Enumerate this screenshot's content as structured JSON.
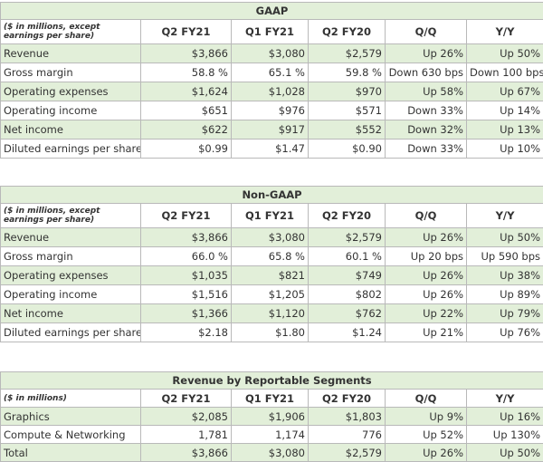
{
  "tables": [
    {
      "title": "GAAP",
      "header": [
        "($ in millions, except earnings per share)",
        "Q2 FY21",
        "Q1 FY21",
        "Q2 FY20",
        "Q/Q",
        "Y/Y"
      ],
      "rows": [
        [
          "Revenue",
          "$3,866",
          "$3,080",
          "$2,579",
          "Up 26%",
          "Up 50%"
        ],
        [
          "Gross margin",
          "58.8 %",
          "65.1 %",
          "59.8 %",
          "Down 630 bps",
          "Down 100 bps"
        ],
        [
          "Operating expenses",
          "$1,624",
          "$1,028",
          "$970",
          "Up 58%",
          "Up 67%"
        ],
        [
          "Operating income",
          "$651",
          "$976",
          "$571",
          "Down 33%",
          "Up 14%"
        ],
        [
          "Net income",
          "$622",
          "$917",
          "$552",
          "Down 32%",
          "Up 13%"
        ],
        [
          "Diluted earnings per share",
          "$0.99",
          "$1.47",
          "$0.90",
          "Down 33%",
          "Up 10%"
        ]
      ]
    },
    {
      "title": "Non-GAAP",
      "header": [
        "($ in millions, except earnings per share)",
        "Q2 FY21",
        "Q1 FY21",
        "Q2 FY20",
        "Q/Q",
        "Y/Y"
      ],
      "rows": [
        [
          "Revenue",
          "$3,866",
          "$3,080",
          "$2,579",
          "Up 26%",
          "Up 50%"
        ],
        [
          "Gross margin",
          "66.0 %",
          "65.8 %",
          "60.1 %",
          "Up 20 bps",
          "Up 590 bps"
        ],
        [
          "Operating expenses",
          "$1,035",
          "$821",
          "$749",
          "Up 26%",
          "Up 38%"
        ],
        [
          "Operating income",
          "$1,516",
          "$1,205",
          "$802",
          "Up 26%",
          "Up 89%"
        ],
        [
          "Net income",
          "$1,366",
          "$1,120",
          "$762",
          "Up 22%",
          "Up 79%"
        ],
        [
          "Diluted earnings per share",
          "$2.18",
          "$1.80",
          "$1.24",
          "Up 21%",
          "Up 76%"
        ]
      ]
    },
    {
      "title": "Revenue by Reportable Segments",
      "header": [
        "($ in millions)",
        "Q2 FY21",
        "Q1 FY21",
        "Q2 FY20",
        "Q/Q",
        "Y/Y"
      ],
      "rows": [
        [
          "Graphics",
          "$2,085",
          "$1,906",
          "$1,803",
          "Up 9%",
          "Up 16%"
        ],
        [
          "Compute & Networking",
          "1,781",
          "1,174",
          "776",
          "Up 52%",
          "Up 130%"
        ],
        [
          "Total",
          "$3,866",
          "$3,080",
          "$2,579",
          "Up 26%",
          "Up 50%"
        ]
      ]
    }
  ]
}
